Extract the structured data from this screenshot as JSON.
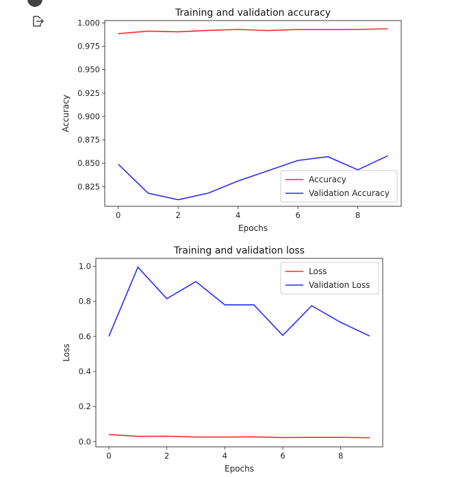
{
  "notebook": {
    "output_icon": "output-arrow-icon",
    "run_icon": "run-cell-icon"
  },
  "colors": {
    "train": "#ff0000",
    "validation": "#0000ff"
  },
  "chart_data": [
    {
      "type": "line",
      "title": "Training and validation accuracy",
      "xlabel": "Epochs",
      "ylabel": "Accuracy",
      "x": [
        0,
        1,
        2,
        3,
        4,
        5,
        6,
        7,
        8,
        9
      ],
      "xlim": [
        -0.45,
        9.45
      ],
      "ylim": [
        0.804,
        1.0025
      ],
      "xticks": [
        0,
        2,
        4,
        6,
        8
      ],
      "yticks": [
        0.825,
        0.85,
        0.875,
        0.9,
        0.925,
        0.95,
        0.975,
        1.0
      ],
      "ytick_labels": [
        "0.825",
        "0.850",
        "0.875",
        "0.900",
        "0.925",
        "0.950",
        "0.975",
        "1.000"
      ],
      "legend_position": "lower-right",
      "series": [
        {
          "name": "Accuracy",
          "color": "#ff0000",
          "values": [
            0.9885,
            0.9912,
            0.9905,
            0.992,
            0.993,
            0.9918,
            0.993,
            0.9928,
            0.993,
            0.9937
          ]
        },
        {
          "name": "Validation Accuracy",
          "color": "#0000ff",
          "values": [
            0.849,
            0.818,
            0.811,
            0.818,
            0.831,
            0.842,
            0.853,
            0.857,
            0.843,
            0.858
          ]
        }
      ]
    },
    {
      "type": "line",
      "title": "Training and validation loss",
      "xlabel": "Epochs",
      "ylabel": "Loss",
      "x": [
        0,
        1,
        2,
        3,
        4,
        5,
        6,
        7,
        8,
        9
      ],
      "xlim": [
        -0.45,
        9.45
      ],
      "ylim": [
        -0.03,
        1.045
      ],
      "xticks": [
        0,
        2,
        4,
        6,
        8
      ],
      "yticks": [
        0.0,
        0.2,
        0.4,
        0.6,
        0.8,
        1.0
      ],
      "ytick_labels": [
        "0.0",
        "0.2",
        "0.4",
        "0.6",
        "0.8",
        "1.0"
      ],
      "legend_position": "upper-right",
      "series": [
        {
          "name": "Loss",
          "color": "#ff0000",
          "values": [
            0.04,
            0.03,
            0.031,
            0.026,
            0.026,
            0.027,
            0.023,
            0.024,
            0.024,
            0.022
          ]
        },
        {
          "name": "Validation Loss",
          "color": "#0000ff",
          "values": [
            0.6,
            0.995,
            0.815,
            0.913,
            0.78,
            0.78,
            0.606,
            0.775,
            0.68,
            0.602
          ]
        }
      ]
    }
  ]
}
